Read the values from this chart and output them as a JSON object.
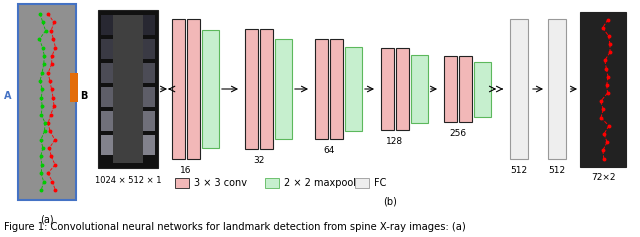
{
  "fig_width": 6.4,
  "fig_height": 2.37,
  "dpi": 100,
  "bg_color": "#ffffff",
  "caption": "Figure 1: Convolutional neural networks for landmark detection from spine X-ray images: (a)",
  "caption_fontsize": 7.2,
  "label_a": "(a)",
  "label_b": "(b)",
  "spine_border_blue": "#4472c4",
  "spine_border_orange": "#e36c09",
  "xray_label": "1024 × 512 × 1",
  "output_label": "72×2",
  "conv_color": "#f2b8b8",
  "pool_color": "#c6efce",
  "fc_color": "#eeeeee",
  "pool_edge": "#5cb85c",
  "conv_edge": "#222222",
  "fc_edge": "#999999",
  "font_size_labels": 6.5,
  "font_size_legend": 7.0,
  "font_size_caption": 7.2,
  "legend_items": [
    {
      "color": "#f2b8b8",
      "edge": "#222222",
      "label": "3 × 3 conv"
    },
    {
      "color": "#c6efce",
      "edge": "#5cb85c",
      "label": "2 × 2 maxpool"
    },
    {
      "color": "#eeeeee",
      "edge": "#999999",
      "label": "FC"
    }
  ]
}
